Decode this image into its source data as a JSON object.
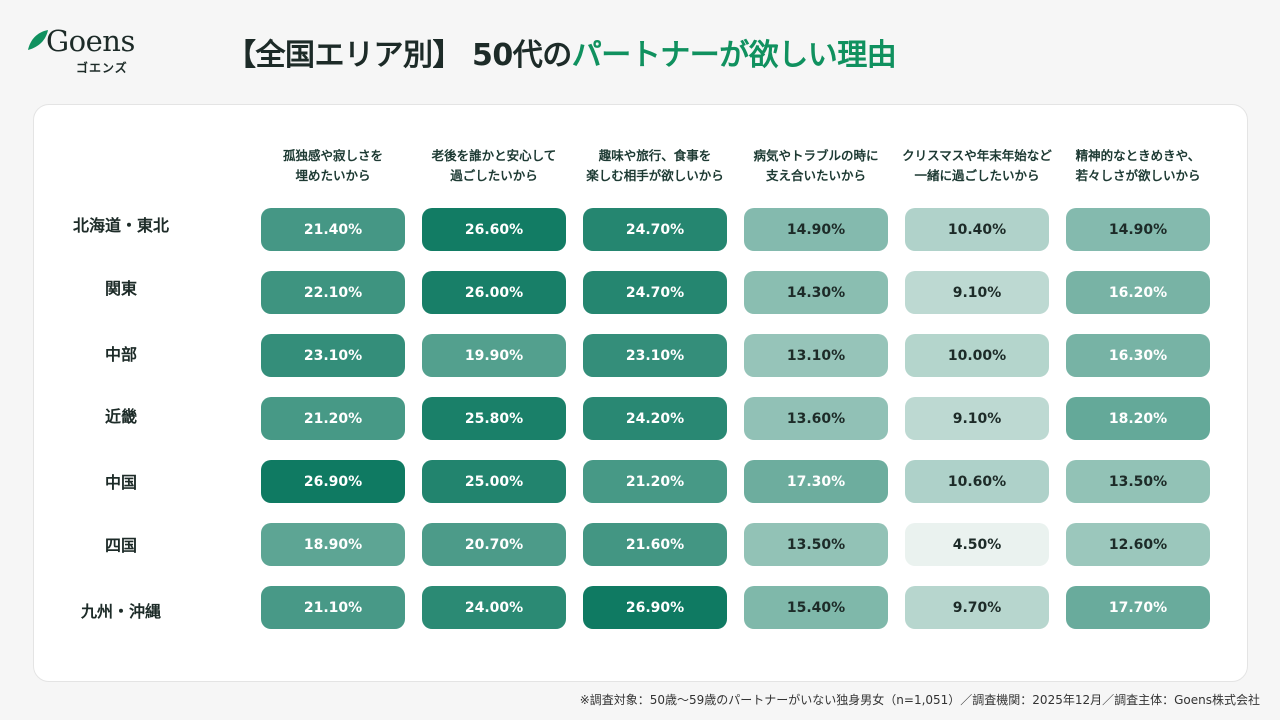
{
  "logo": {
    "name": "Goens",
    "sub": "ゴエンズ"
  },
  "title": {
    "prefix": "【全国エリア別】 50代の",
    "accent": "パートナーが欲しい理由"
  },
  "colors": {
    "accent": "#10915f",
    "dark": "#0f7a62",
    "light": "#eaf2ef",
    "text": "#1d2b28"
  },
  "chart_data": {
    "type": "heatmap",
    "title": "【全国エリア別】 50代のパートナーが欲しい理由",
    "columns": [
      "孤独感や寂しさを\n埋めたいから",
      "老後を誰かと安心して\n過ごしたいから",
      "趣味や旅行、食事を\n楽しむ相手が欲しいから",
      "病気やトラブルの時に\n支え合いたいから",
      "クリスマスや年末年始など\n一緒に過ごしたいから",
      "精神的なときめきや、\n若々しさが欲しいから"
    ],
    "rows": [
      "北海道・東北",
      "関東",
      "中部",
      "近畿",
      "中国",
      "四国",
      "九州・沖縄"
    ],
    "values": [
      [
        21.4,
        26.6,
        24.7,
        14.9,
        10.4,
        14.9
      ],
      [
        22.1,
        26.0,
        24.7,
        14.3,
        9.1,
        16.2
      ],
      [
        23.1,
        19.9,
        23.1,
        13.1,
        10.0,
        16.3
      ],
      [
        21.2,
        25.8,
        24.2,
        13.6,
        9.1,
        18.2
      ],
      [
        26.9,
        25.0,
        21.2,
        17.3,
        10.6,
        13.5
      ],
      [
        18.9,
        20.7,
        21.6,
        13.5,
        4.5,
        12.6
      ],
      [
        21.1,
        24.0,
        26.9,
        15.4,
        9.7,
        17.7
      ]
    ],
    "unit": "%"
  },
  "footnote": "※調査対象：50歳〜59歳のパートナーがいない独身男女（n=1,051）／調査機関：2025年12月／調査主体：Goens株式会社"
}
